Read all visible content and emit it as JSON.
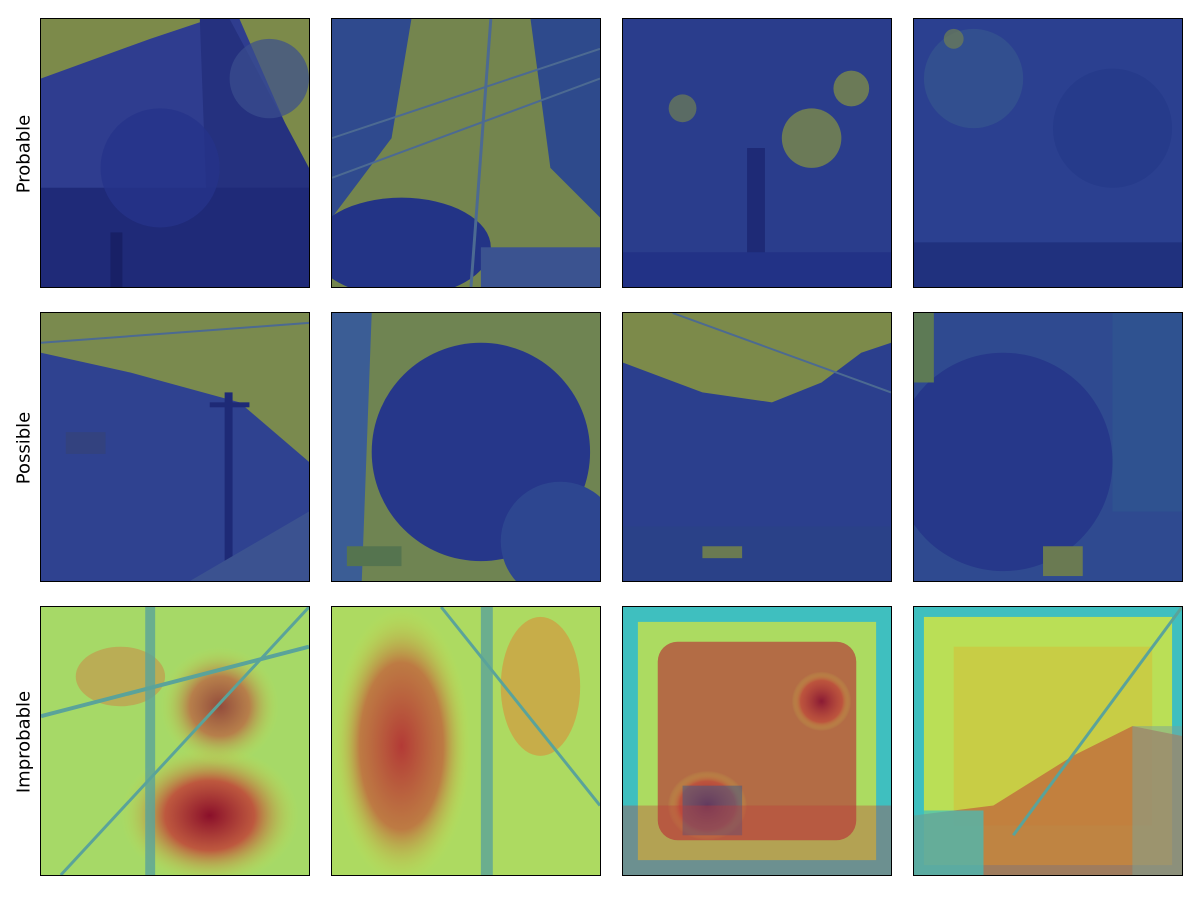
{
  "rows": [
    {
      "label": "Probable",
      "theme": "dark",
      "panels": [
        {
          "scene": "building-and-trees"
        },
        {
          "scene": "sky-with-power-lines"
        },
        {
          "scene": "large-tree-canopy"
        },
        {
          "scene": "dense-foliage"
        }
      ]
    },
    {
      "label": "Possible",
      "theme": "dark",
      "panels": [
        {
          "scene": "street-with-utility-pole"
        },
        {
          "scene": "tree-canopy-with-wires"
        },
        {
          "scene": "tree-under-open-sky"
        },
        {
          "scene": "foliage-edge"
        }
      ]
    },
    {
      "label": "Improbable",
      "theme": "heat",
      "panels": [
        {
          "scene": "heatmap-wires-hotspot-lower-center"
        },
        {
          "scene": "heatmap-tree-trunk"
        },
        {
          "scene": "heatmap-square-hotspot"
        },
        {
          "scene": "heatmap-buildings-right"
        }
      ]
    }
  ],
  "colors": {
    "dark_base": "#2a3f8c",
    "dark_sky": "#7c8a4a",
    "heat_base": "#c8e24a",
    "heat_hot": "#b22a32",
    "heat_edge": "#3fbfbf"
  }
}
